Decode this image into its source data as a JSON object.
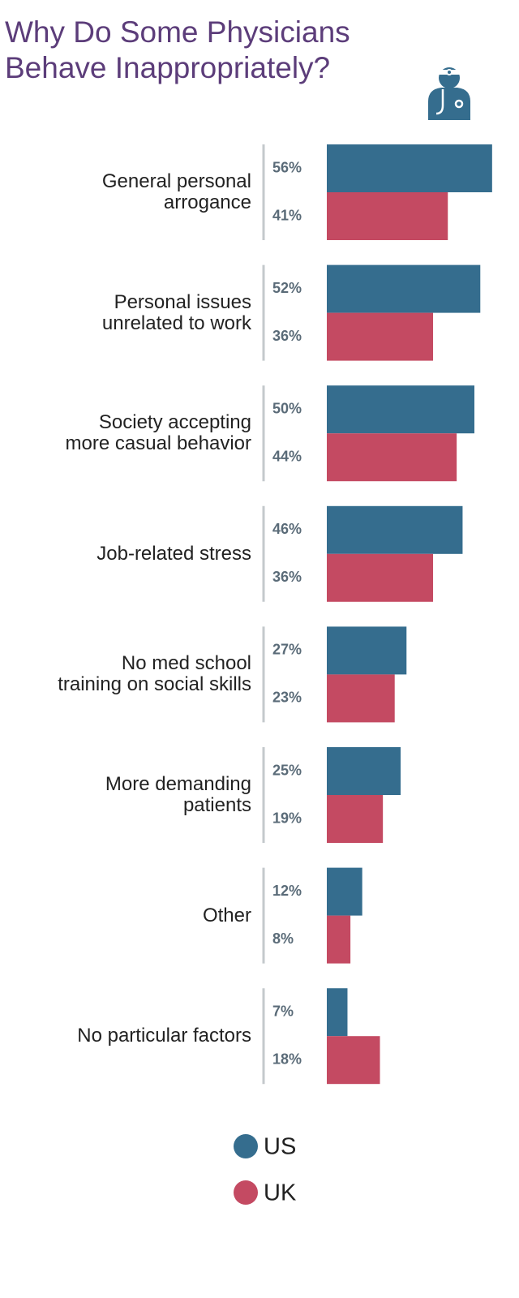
{
  "chart_data": {
    "type": "bar",
    "orientation": "horizontal",
    "title": "Why Do Some Physicians\nBehave Inappropriately?",
    "categories": [
      "General personal\narrogance",
      "Personal issues\nunrelated to work",
      "Society accepting\nmore casual behavior",
      "Job-related stress",
      "No med school\ntraining on social skills",
      "More demanding\npatients",
      "Other",
      "No particular factors"
    ],
    "series": [
      {
        "name": "US",
        "color": "#356d8e",
        "values": [
          56,
          52,
          50,
          46,
          27,
          25,
          12,
          7
        ],
        "value_labels": [
          "56%",
          "52%",
          "50%",
          "46%",
          "27%",
          "25%",
          "12%",
          "7%"
        ]
      },
      {
        "name": "UK",
        "color": "#c44a62",
        "values": [
          41,
          36,
          44,
          36,
          23,
          19,
          8,
          18
        ],
        "value_labels": [
          "41%",
          "36%",
          "44%",
          "36%",
          "23%",
          "19%",
          "8%",
          "18%"
        ]
      }
    ]
  }
}
